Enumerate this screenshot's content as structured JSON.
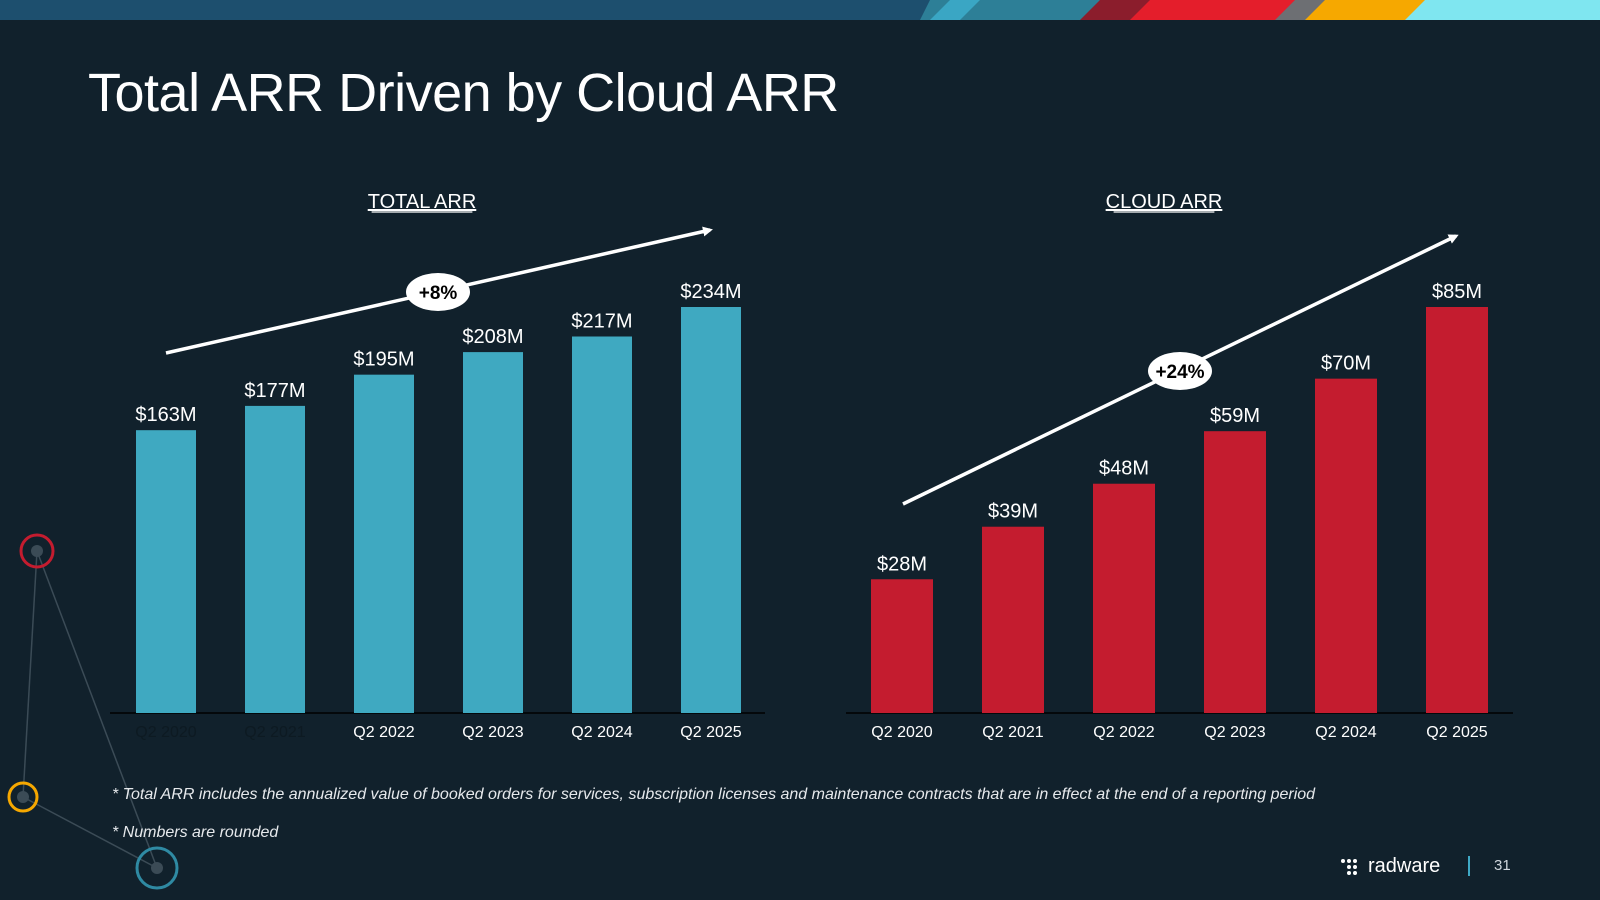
{
  "page": {
    "title": "Total ARR Driven by Cloud ARR",
    "footnote1": "* Total ARR includes the annualized value of booked orders for services, subscription licenses and maintenance contracts that are in effect at the end of a reporting period",
    "footnote2": "* Numbers are rounded",
    "brand": "radware",
    "page_number": "31"
  },
  "colors": {
    "background": "#11212c",
    "total_bar": "#3fa9c1",
    "cloud_bar": "#c41c2f",
    "accent_red": "#c41c2f",
    "accent_yellow": "#f6a800",
    "accent_teal": "#2f8aa3"
  },
  "chart_data": [
    {
      "type": "bar",
      "title": "TOTAL ARR",
      "categories": [
        "Q2 2020",
        "Q2 2021",
        "Q2 2022",
        "Q2 2023",
        "Q2 2024",
        "Q2 2025"
      ],
      "values": [
        163,
        177,
        195,
        208,
        217,
        234
      ],
      "data_labels": [
        "$163M",
        "$177M",
        "$195M",
        "$208M",
        "$217M",
        "$234M"
      ],
      "growth_label": "+8%",
      "xlabel": "",
      "ylabel": "",
      "ylim": [
        0,
        245
      ],
      "grid": false,
      "color": "#3fa9c1"
    },
    {
      "type": "bar",
      "title": "CLOUD ARR",
      "categories": [
        "Q2 2020",
        "Q2 2021",
        "Q2 2022",
        "Q2 2023",
        "Q2 2024",
        "Q2 2025"
      ],
      "values": [
        28,
        39,
        48,
        59,
        70,
        85
      ],
      "data_labels": [
        "$28M",
        "$39M",
        "$48M",
        "$59M",
        "$70M",
        "$85M"
      ],
      "growth_label": "+24%",
      "xlabel": "",
      "ylabel": "",
      "ylim": [
        0,
        100
      ],
      "grid": false,
      "color": "#c41c2f"
    }
  ]
}
